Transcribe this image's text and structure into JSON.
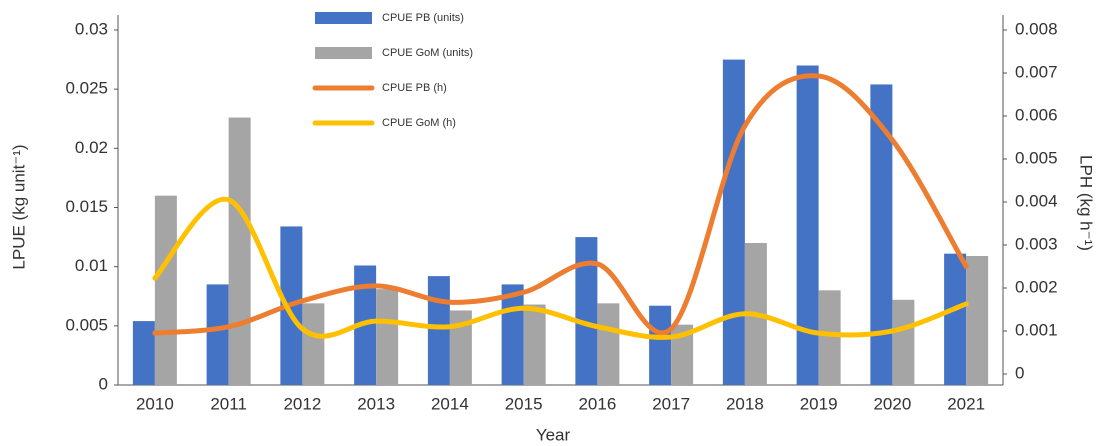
{
  "chart_data": {
    "type": "bar_line",
    "categories": [
      "2010",
      "2011",
      "2012",
      "2013",
      "2014",
      "2015",
      "2016",
      "2017",
      "2018",
      "2019",
      "2020",
      "2021"
    ],
    "series": [
      {
        "name": "CPUE PB (units)",
        "color": "#4472c4",
        "kind": "bar",
        "values": [
          0.0054,
          0.0085,
          0.0134,
          0.0101,
          0.0092,
          0.0085,
          0.0125,
          0.0067,
          0.0275,
          0.027,
          0.0254,
          0.0111
        ]
      },
      {
        "name": "CPUE GoM (units)",
        "color": "#a5a5a5",
        "kind": "bar",
        "values": [
          0.016,
          0.0226,
          0.0069,
          0.0081,
          0.0063,
          0.0068,
          0.0069,
          0.0051,
          0.012,
          0.008,
          0.0072,
          0.0109
        ]
      },
      {
        "name": "CPUE PB (h)",
        "color": "#ed7d31",
        "kind": "line",
        "axis": "y2",
        "values": [
          0.00095,
          0.0011,
          0.0017,
          0.00205,
          0.00167,
          0.0019,
          0.00256,
          0.00105,
          0.00577,
          0.00693,
          0.00544,
          0.0025
        ]
      },
      {
        "name": "CPUE GoM (h)",
        "color": "#ffc000",
        "kind": "line",
        "axis": "y2",
        "values": [
          0.00223,
          0.00405,
          0.00105,
          0.00123,
          0.0011,
          0.00153,
          0.0011,
          0.00086,
          0.0014,
          0.00095,
          0.001,
          0.00163
        ]
      }
    ],
    "xlabel": "Year",
    "ylabel": "LPUE (kg unit⁻¹)",
    "y2label": "LPH (kg h⁻¹)",
    "ylim": [
      0,
      0.03
    ],
    "yticks": [
      0,
      0.005,
      0.01,
      0.015,
      0.02,
      0.025,
      0.03
    ],
    "y2lim": [
      0,
      0.008
    ],
    "y2ticks": [
      0,
      0.001,
      0.002,
      0.003,
      0.004,
      0.005,
      0.006,
      0.007,
      0.008
    ],
    "grid": false
  }
}
